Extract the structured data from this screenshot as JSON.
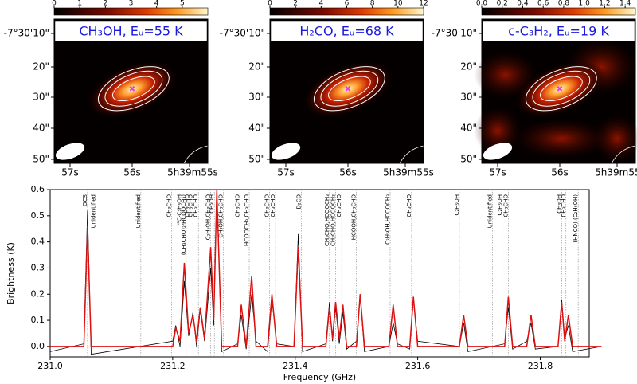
{
  "chart_data": [
    {
      "type": "image",
      "title": "CH₃OH, Eᵤ=55 K",
      "clim": [
        0,
        6
      ],
      "cticks": [
        0,
        1,
        2,
        3,
        4,
        5
      ],
      "xtick_labels": [
        "57s",
        "56s",
        "5h39m55s"
      ],
      "ytick_labels": [
        "-7°30'10\"",
        "20\"",
        "30\"",
        "40\"",
        "50\""
      ]
    },
    {
      "type": "image",
      "title": "H₂CO, Eᵤ=68 K",
      "clim": [
        0,
        12
      ],
      "cticks": [
        0,
        2,
        4,
        6,
        8,
        10,
        12
      ],
      "xtick_labels": [
        "57s",
        "56s",
        "5h39m55s"
      ],
      "ytick_labels": [
        "-7°30'10\"",
        "20\"",
        "30\"",
        "40\"",
        "50\""
      ]
    },
    {
      "type": "image",
      "title": "c-C₃H₂, Eᵤ=19 K",
      "clim": [
        0,
        1.5
      ],
      "cticks": [
        {
          "value": 0,
          "label": "0.0"
        },
        0.2,
        0.4,
        0.6,
        0.8,
        {
          "value": 1,
          "label": "1.0"
        },
        1.2,
        1.4
      ],
      "xtick_labels": [
        "57s",
        "56s",
        "5h39m55s"
      ],
      "ytick_labels": [
        "-7°30'10\"",
        "20\"",
        "30\"",
        "40\"",
        "50\""
      ]
    },
    {
      "type": "line",
      "xlabel": "Frequency (GHz)",
      "ylabel": "Brightness (K)",
      "xlim": [
        231.0,
        231.88
      ],
      "ylim": [
        -0.04,
        0.6
      ],
      "xticks": [
        {
          "value": 231,
          "label": "231.0"
        },
        231.2,
        231.4,
        231.6,
        231.8
      ],
      "yticks": [
        {
          "value": 0,
          "label": "0.0"
        },
        0.1,
        0.2,
        0.3,
        0.4,
        0.5,
        0.6
      ],
      "x": [
        231.0,
        231.055,
        231.061,
        231.067,
        231.2,
        231.205,
        231.212,
        231.219,
        231.226,
        231.233,
        231.239,
        231.245,
        231.252,
        231.262,
        231.267,
        231.272,
        231.28,
        231.306,
        231.312,
        231.32,
        231.329,
        231.336,
        231.355,
        231.362,
        231.37,
        231.398,
        231.405,
        231.412,
        231.45,
        231.456,
        231.461,
        231.466,
        231.472,
        231.478,
        231.484,
        231.5,
        231.506,
        231.513,
        231.553,
        231.56,
        231.567,
        231.587,
        231.593,
        231.6,
        231.668,
        231.675,
        231.682,
        231.742,
        231.748,
        231.755,
        231.778,
        231.785,
        231.792,
        231.829,
        231.835,
        231.84,
        231.846,
        231.853,
        231.9
      ],
      "series": [
        {
          "color": "#000000",
          "values": [
            -0.02,
            0.01,
            0.52,
            -0.03,
            0.02,
            0.08,
            0.0,
            0.25,
            0.04,
            0.13,
            0.0,
            0.14,
            0.02,
            0.3,
            0.08,
            0.6,
            -0.02,
            0.01,
            0.12,
            -0.01,
            0.2,
            0.02,
            -0.02,
            0.18,
            0.01,
            0.0,
            0.43,
            -0.02,
            0.01,
            0.17,
            0.02,
            0.15,
            0.01,
            0.13,
            -0.01,
            0.02,
            0.2,
            -0.02,
            0.0,
            0.09,
            0.01,
            -0.01,
            0.18,
            0.02,
            0.0,
            0.09,
            -0.02,
            0.01,
            0.15,
            -0.01,
            0.02,
            0.09,
            -0.01,
            0.0,
            0.18,
            0.03,
            0.08,
            -0.02,
            0.0
          ]
        },
        {
          "color": "#dd1111",
          "values": [
            0,
            0,
            0.45,
            0,
            0,
            0.07,
            0.02,
            0.32,
            0.05,
            0.12,
            0.02,
            0.15,
            0.03,
            0.38,
            0.1,
            0.6,
            0,
            0,
            0.16,
            0,
            0.27,
            0,
            0,
            0.2,
            0,
            0,
            0.38,
            0,
            0,
            0.15,
            0.03,
            0.17,
            0.03,
            0.16,
            0,
            0,
            0.2,
            0,
            0,
            0.16,
            0,
            0,
            0.19,
            0,
            0,
            0.12,
            0,
            0,
            0.19,
            0,
            0,
            0.12,
            0,
            0,
            0.17,
            0.02,
            0.12,
            0,
            0
          ]
        }
      ],
      "annotations": [
        {
          "x": 231.061,
          "label": "OCS"
        },
        {
          "x": 231.075,
          "label": "Unidentified"
        },
        {
          "x": 231.148,
          "label": "Unidentified"
        },
        {
          "x": 231.198,
          "label": "CH₃CHO"
        },
        {
          "x": 231.215,
          "label": "¹³C-C₂H₅OH"
        },
        {
          "x": 231.222,
          "label": "(CH₃CHO)₂/HCOOCH₃)"
        },
        {
          "x": 231.228,
          "label": "CH₃CHO"
        },
        {
          "x": 231.233,
          "label": "CH₃CHO"
        },
        {
          "x": 231.242,
          "label": "CH₃CHO"
        },
        {
          "x": 231.262,
          "label": "C₂H₅OH,CH₃CHO"
        },
        {
          "x": 231.268,
          "label": "CH₃OH"
        },
        {
          "x": 231.283,
          "label": "CH₃OH,CH₃CHO"
        },
        {
          "x": 231.31,
          "label": "CH₃CHO"
        },
        {
          "x": 231.325,
          "label": "HCOOCH₃,CH₃CHO"
        },
        {
          "x": 231.358,
          "label": "CH₃CHO"
        },
        {
          "x": 231.368,
          "label": "CH₃CHO"
        },
        {
          "x": 231.41,
          "label": "D₂CO"
        },
        {
          "x": 231.456,
          "label": "CH₃CHO,HCOOCH₃"
        },
        {
          "x": 231.466,
          "label": "CH₃CHO,HCOOCH₃"
        },
        {
          "x": 231.476,
          "label": "CH₃CHO"
        },
        {
          "x": 231.5,
          "label": "HCOOH,CH₃CHO"
        },
        {
          "x": 231.555,
          "label": "C₂H₅OH,HCOOCH₃"
        },
        {
          "x": 231.59,
          "label": "CH₃CHO"
        },
        {
          "x": 231.668,
          "label": "C₂H₅OH"
        },
        {
          "x": 231.722,
          "label": "Unidentified"
        },
        {
          "x": 231.738,
          "label": "C₂H₅OH"
        },
        {
          "x": 231.748,
          "label": "CH₃CHO"
        },
        {
          "x": 231.835,
          "label": "CH₃OH"
        },
        {
          "x": 231.842,
          "label": "CH₃CHO"
        },
        {
          "x": 231.862,
          "label": "(HNCO),(C₂H₅OH)"
        }
      ]
    }
  ]
}
